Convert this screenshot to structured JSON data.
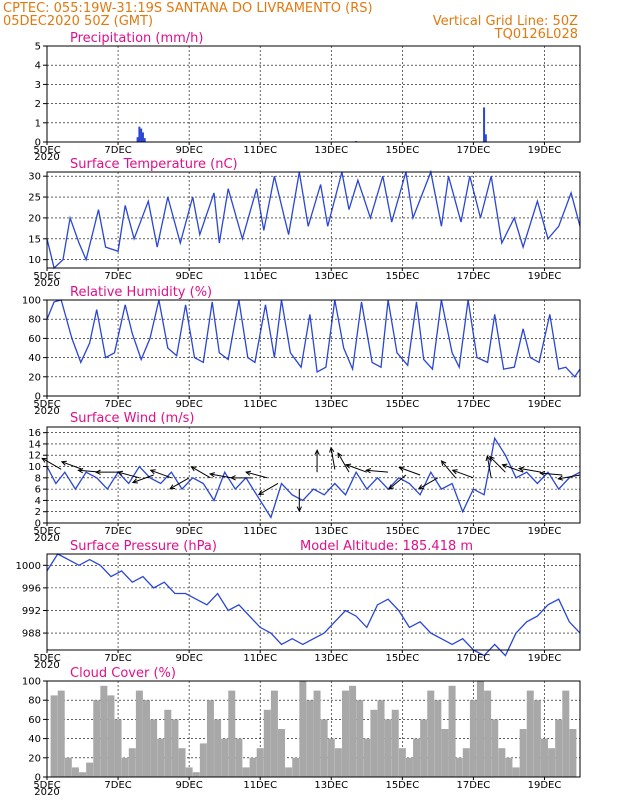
{
  "header": {
    "line1_left": "CPTEC:   055:19W-31:19S  SANTANA DO LIVRAMENTO (RS)",
    "line2_left": "05DEC2020 50Z (GMT)",
    "line2_right": "Vertical Grid Line: 50Z",
    "line3_right": "TQ0126L028"
  },
  "x_axis": {
    "labels": [
      "5DEC",
      "7DEC",
      "9DEC",
      "11DEC",
      "13DEC",
      "15DEC",
      "17DEC",
      "19DEC"
    ],
    "label_days": [
      0,
      2,
      4,
      6,
      8,
      10,
      12,
      14
    ],
    "overlap_label": "2020",
    "range_days": [
      0,
      15
    ]
  },
  "colors": {
    "header": "#e07a10",
    "panel_title": "#e0108a",
    "line": "#2a46d6",
    "cloud": "#a8a8a8"
  },
  "panels": {
    "precip": {
      "title": "Precipitation  (mm/h)"
    },
    "temp": {
      "title": "Surface Temperature  (nC)"
    },
    "rh": {
      "title": "Relative Humidity  (%)"
    },
    "wind": {
      "title": "Surface Wind  (m/s)"
    },
    "pressure": {
      "title": "Surface Pressure  (hPa)",
      "altitude": "Model Altitude:  185.418  m"
    },
    "cloud": {
      "title": "Cloud Cover  (%)"
    }
  },
  "chart_data": [
    {
      "id": "precip",
      "type": "bar",
      "ylim": [
        0,
        5
      ],
      "yticks": [
        0,
        1,
        2,
        3,
        4,
        5
      ],
      "grid": true,
      "x": [
        2.55,
        2.6,
        2.65,
        2.7,
        2.75,
        8.7,
        12.3,
        12.35
      ],
      "values": [
        0.25,
        0.8,
        0.7,
        0.5,
        0.2,
        0.05,
        1.8,
        0.4
      ]
    },
    {
      "id": "temp",
      "type": "line",
      "ylim": [
        8,
        31
      ],
      "yticks": [
        10,
        15,
        20,
        25,
        30
      ],
      "grid": true,
      "x": [
        0,
        0.2,
        0.45,
        0.65,
        0.9,
        1.1,
        1.45,
        1.65,
        2.0,
        2.2,
        2.45,
        2.85,
        3.1,
        3.4,
        3.75,
        4.1,
        4.3,
        4.7,
        4.85,
        5.1,
        5.5,
        5.9,
        6.1,
        6.4,
        6.8,
        7.1,
        7.35,
        7.7,
        7.9,
        8.3,
        8.5,
        8.75,
        9.1,
        9.45,
        9.7,
        10.1,
        10.3,
        10.8,
        11.1,
        11.3,
        11.65,
        11.9,
        12.2,
        12.5,
        12.8,
        13.15,
        13.4,
        13.8,
        14.1,
        14.4,
        14.75,
        15.0
      ],
      "values": [
        15,
        8,
        10,
        20,
        14,
        10,
        22,
        13,
        12,
        23,
        15,
        24,
        13,
        25,
        14,
        25,
        16,
        26,
        14,
        27,
        15,
        27,
        17,
        30,
        16,
        31,
        18,
        28,
        18,
        31,
        22,
        29,
        20,
        30,
        19,
        31,
        20,
        31,
        18,
        30,
        19,
        30,
        20,
        30,
        14,
        20,
        13,
        24,
        15,
        18,
        26,
        18
      ]
    },
    {
      "id": "rh",
      "type": "line",
      "ylim": [
        0,
        100
      ],
      "yticks": [
        0,
        20,
        40,
        60,
        80,
        100
      ],
      "grid": true,
      "x": [
        0,
        0.2,
        0.4,
        0.7,
        0.95,
        1.2,
        1.4,
        1.65,
        1.9,
        2.2,
        2.4,
        2.65,
        2.9,
        3.15,
        3.4,
        3.65,
        3.9,
        4.15,
        4.4,
        4.65,
        4.85,
        5.1,
        5.4,
        5.65,
        5.85,
        6.15,
        6.4,
        6.6,
        6.85,
        7.15,
        7.4,
        7.6,
        7.85,
        8.1,
        8.35,
        8.6,
        8.85,
        9.15,
        9.4,
        9.6,
        9.85,
        10.15,
        10.4,
        10.6,
        10.85,
        11.1,
        11.4,
        11.6,
        11.85,
        12.1,
        12.4,
        12.6,
        12.85,
        13.15,
        13.4,
        13.6,
        13.85,
        14.15,
        14.4,
        14.6,
        14.85,
        15.0
      ],
      "values": [
        80,
        98,
        100,
        60,
        35,
        55,
        90,
        40,
        45,
        95,
        65,
        38,
        60,
        100,
        50,
        42,
        95,
        40,
        35,
        98,
        45,
        38,
        100,
        40,
        35,
        95,
        40,
        100,
        45,
        30,
        85,
        25,
        30,
        100,
        50,
        28,
        98,
        35,
        30,
        100,
        45,
        32,
        98,
        38,
        28,
        100,
        45,
        30,
        100,
        40,
        35,
        85,
        28,
        30,
        70,
        40,
        35,
        85,
        28,
        30,
        20,
        28
      ]
    },
    {
      "id": "wind",
      "type": "line",
      "ylim": [
        0,
        17
      ],
      "yticks": [
        0,
        2,
        4,
        6,
        8,
        10,
        12,
        14,
        16
      ],
      "grid": true,
      "x": [
        0,
        0.25,
        0.5,
        0.8,
        1.1,
        1.4,
        1.7,
        2.0,
        2.3,
        2.6,
        2.9,
        3.2,
        3.5,
        3.8,
        4.1,
        4.4,
        4.7,
        5.0,
        5.3,
        5.6,
        5.9,
        6.1,
        6.3,
        6.6,
        6.9,
        7.2,
        7.5,
        7.8,
        8.1,
        8.4,
        8.7,
        9.0,
        9.3,
        9.6,
        9.9,
        10.2,
        10.5,
        10.8,
        11.1,
        11.4,
        11.7,
        12.0,
        12.3,
        12.6,
        12.9,
        13.2,
        13.5,
        13.8,
        14.1,
        14.4,
        14.7,
        15.0
      ],
      "values": [
        10,
        7,
        9,
        6,
        9,
        8,
        6,
        9,
        7,
        10,
        8,
        7,
        9,
        6,
        8,
        7,
        4,
        9,
        6,
        8,
        5,
        3,
        1,
        7,
        5,
        4,
        6,
        5,
        7,
        5,
        9,
        6,
        8,
        6,
        8,
        7,
        5,
        9,
        6,
        7,
        2,
        6,
        5,
        15,
        12,
        8,
        9,
        7,
        9,
        6,
        8,
        9
      ],
      "arrows": [
        [
          0.4,
          9.5,
          -150
        ],
        [
          1.0,
          9.5,
          -160
        ],
        [
          1.5,
          9.0,
          -175
        ],
        [
          2.0,
          9.0,
          180
        ],
        [
          2.6,
          8.0,
          -165
        ],
        [
          3.0,
          8.5,
          160
        ],
        [
          3.5,
          8.0,
          -160
        ],
        [
          4.0,
          8.0,
          150
        ],
        [
          4.6,
          8.0,
          -150
        ],
        [
          5.2,
          8.0,
          -170
        ],
        [
          5.8,
          8.0,
          180
        ],
        [
          6.2,
          8.0,
          -165
        ],
        [
          6.5,
          7.0,
          150
        ],
        [
          7.1,
          6.0,
          90
        ],
        [
          7.6,
          9.0,
          -90
        ],
        [
          8.1,
          9.5,
          -100
        ],
        [
          8.5,
          9.0,
          -120
        ],
        [
          9.0,
          9.0,
          -160
        ],
        [
          9.6,
          9.0,
          -175
        ],
        [
          10.1,
          8.5,
          140
        ],
        [
          10.5,
          8.5,
          -160
        ],
        [
          11.0,
          8.0,
          150
        ],
        [
          11.5,
          8.0,
          -130
        ],
        [
          12.0,
          8.0,
          -160
        ],
        [
          12.5,
          8.0,
          -100
        ],
        [
          12.9,
          9.0,
          -135
        ],
        [
          13.4,
          9.0,
          -160
        ],
        [
          13.9,
          9.0,
          -170
        ],
        [
          14.5,
          8.5,
          -175
        ],
        [
          15.0,
          8.5,
          170
        ]
      ]
    },
    {
      "id": "pressure",
      "type": "line",
      "ylim": [
        985,
        1002
      ],
      "yticks": [
        988,
        992,
        996,
        1000
      ],
      "grid": true,
      "x": [
        0,
        0.3,
        0.6,
        0.9,
        1.2,
        1.5,
        1.8,
        2.1,
        2.4,
        2.7,
        3.0,
        3.3,
        3.6,
        3.9,
        4.2,
        4.5,
        4.8,
        5.1,
        5.4,
        5.7,
        6.0,
        6.3,
        6.6,
        6.9,
        7.2,
        7.5,
        7.8,
        8.1,
        8.4,
        8.7,
        9.0,
        9.3,
        9.6,
        9.9,
        10.2,
        10.5,
        10.8,
        11.1,
        11.4,
        11.7,
        12.0,
        12.3,
        12.6,
        12.9,
        13.2,
        13.5,
        13.8,
        14.1,
        14.4,
        14.7,
        15.0
      ],
      "values": [
        999,
        1002,
        1001,
        1000,
        1001,
        1000,
        998,
        999,
        997,
        998,
        996,
        997,
        995,
        995,
        994,
        993,
        995,
        992,
        993,
        991,
        989,
        988,
        986,
        987,
        986,
        987,
        988,
        990,
        992,
        991,
        989,
        993,
        994,
        992,
        989,
        990,
        988,
        987,
        986,
        987,
        985,
        984,
        986,
        984,
        988,
        990,
        991,
        993,
        994,
        990,
        988
      ]
    },
    {
      "id": "cloud",
      "type": "bar",
      "ylim": [
        0,
        100
      ],
      "yticks": [
        0,
        20,
        40,
        60,
        80,
        100
      ],
      "grid": true,
      "x": [
        0.2,
        0.4,
        0.6,
        0.8,
        1.0,
        1.2,
        1.4,
        1.6,
        1.8,
        2.0,
        2.2,
        2.4,
        2.6,
        2.8,
        3.0,
        3.2,
        3.4,
        3.6,
        3.8,
        4.0,
        4.2,
        4.4,
        4.6,
        4.8,
        5.0,
        5.2,
        5.4,
        5.6,
        5.8,
        6.0,
        6.2,
        6.4,
        6.6,
        6.8,
        7.0,
        7.2,
        7.4,
        7.6,
        7.8,
        8.0,
        8.2,
        8.4,
        8.6,
        8.8,
        9.0,
        9.2,
        9.4,
        9.6,
        9.8,
        10.0,
        10.2,
        10.4,
        10.6,
        10.8,
        11.0,
        11.2,
        11.4,
        11.6,
        11.8,
        12.0,
        12.2,
        12.4,
        12.6,
        12.8,
        13.0,
        13.2,
        13.4,
        13.6,
        13.8,
        14.0,
        14.2,
        14.4,
        14.6,
        14.8
      ],
      "values": [
        85,
        90,
        20,
        10,
        5,
        15,
        80,
        95,
        85,
        60,
        20,
        30,
        90,
        80,
        60,
        40,
        70,
        60,
        30,
        10,
        5,
        35,
        80,
        60,
        40,
        90,
        40,
        10,
        20,
        30,
        70,
        90,
        50,
        10,
        20,
        100,
        80,
        90,
        60,
        40,
        30,
        90,
        95,
        80,
        40,
        70,
        80,
        60,
        70,
        30,
        20,
        40,
        60,
        90,
        80,
        50,
        95,
        20,
        30,
        80,
        100,
        90,
        60,
        30,
        20,
        10,
        50,
        90,
        80,
        40,
        30,
        60,
        90,
        50
      ]
    }
  ]
}
